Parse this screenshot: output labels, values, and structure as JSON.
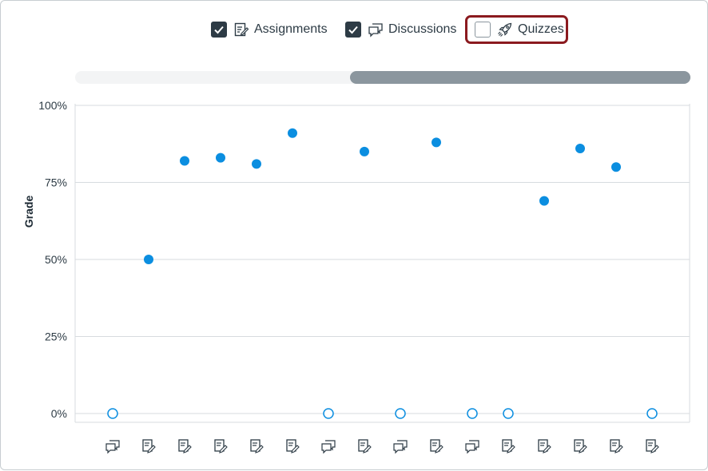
{
  "filters": [
    {
      "label": "Assignments",
      "checked": true,
      "icon": "assignment-icon"
    },
    {
      "label": "Discussions",
      "checked": true,
      "icon": "discussion-icon"
    },
    {
      "label": "Quizzes",
      "checked": false,
      "icon": "quiz-rocket-icon",
      "highlighted": true
    }
  ],
  "colors": {
    "point": "#0b8ee0",
    "text": "#2d3b45",
    "grid": "#d7dbdf",
    "highlight": "#8b1a1f"
  },
  "chart_data": {
    "type": "scatter",
    "xlabel": "",
    "ylabel": "Grade",
    "ylim": [
      0,
      100
    ],
    "yticks": [
      "0%",
      "25%",
      "50%",
      "75%",
      "100%"
    ],
    "grid": true,
    "points": [
      {
        "category": "discussion",
        "value": 0,
        "filled": false
      },
      {
        "category": "assignment",
        "value": 50,
        "filled": true
      },
      {
        "category": "assignment",
        "value": 82,
        "filled": true
      },
      {
        "category": "assignment",
        "value": 83,
        "filled": true
      },
      {
        "category": "assignment",
        "value": 81,
        "filled": true
      },
      {
        "category": "assignment",
        "value": 91,
        "filled": true
      },
      {
        "category": "discussion",
        "value": 0,
        "filled": false
      },
      {
        "category": "assignment",
        "value": 85,
        "filled": true
      },
      {
        "category": "discussion",
        "value": 0,
        "filled": false
      },
      {
        "category": "assignment",
        "value": 88,
        "filled": true
      },
      {
        "category": "discussion",
        "value": 0,
        "filled": false
      },
      {
        "category": "assignment",
        "value": 0,
        "filled": false
      },
      {
        "category": "assignment",
        "value": 69,
        "filled": true
      },
      {
        "category": "assignment",
        "value": 86,
        "filled": true
      },
      {
        "category": "assignment",
        "value": 80,
        "filled": true
      },
      {
        "category": "assignment",
        "value": 0,
        "filled": false
      }
    ]
  }
}
